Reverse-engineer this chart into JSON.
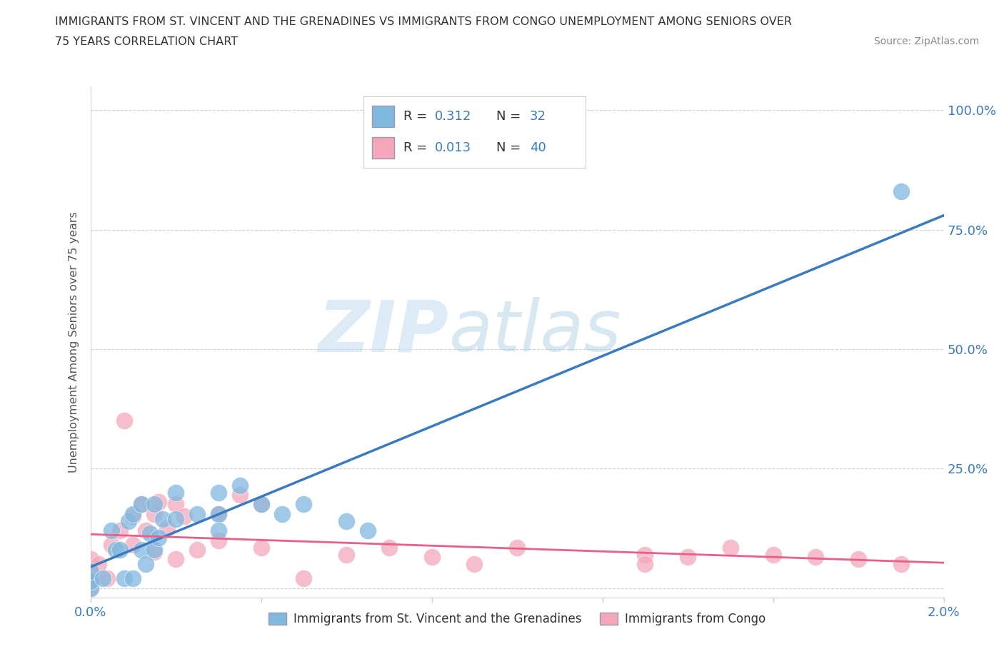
{
  "title_line1": "IMMIGRANTS FROM ST. VINCENT AND THE GRENADINES VS IMMIGRANTS FROM CONGO UNEMPLOYMENT AMONG SENIORS OVER",
  "title_line2": "75 YEARS CORRELATION CHART",
  "source": "Source: ZipAtlas.com",
  "ylabel": "Unemployment Among Seniors over 75 years",
  "xlim": [
    0.0,
    0.02
  ],
  "ylim": [
    -0.02,
    1.05
  ],
  "xticks": [
    0.0,
    0.004,
    0.008,
    0.012,
    0.016,
    0.02
  ],
  "xtick_labels": [
    "0.0%",
    "",
    "",
    "",
    "",
    "2.0%"
  ],
  "ytick_positions": [
    0.0,
    0.25,
    0.5,
    0.75,
    1.0
  ],
  "ytick_labels": [
    "",
    "25.0%",
    "50.0%",
    "75.0%",
    "100.0%"
  ],
  "blue_color": "#80b8e0",
  "pink_color": "#f4a7bb",
  "blue_line_color": "#3a7abf",
  "pink_line_color": "#e8608a",
  "R_blue": 0.312,
  "N_blue": 32,
  "R_pink": 0.013,
  "N_pink": 40,
  "watermark_zip": "ZIP",
  "watermark_atlas": "atlas",
  "blue_scatter_x": [
    0.0,
    0.0,
    0.0,
    0.0003,
    0.0005,
    0.0006,
    0.0007,
    0.0008,
    0.0009,
    0.001,
    0.001,
    0.0012,
    0.0012,
    0.0013,
    0.0014,
    0.0015,
    0.0015,
    0.0016,
    0.0017,
    0.002,
    0.002,
    0.0025,
    0.003,
    0.003,
    0.003,
    0.0035,
    0.004,
    0.0045,
    0.005,
    0.006,
    0.0065,
    0.019
  ],
  "blue_scatter_y": [
    0.0,
    0.015,
    0.035,
    0.02,
    0.12,
    0.08,
    0.08,
    0.02,
    0.14,
    0.02,
    0.155,
    0.08,
    0.175,
    0.05,
    0.115,
    0.08,
    0.175,
    0.105,
    0.145,
    0.145,
    0.2,
    0.155,
    0.155,
    0.12,
    0.2,
    0.215,
    0.175,
    0.155,
    0.175,
    0.14,
    0.12,
    0.83
  ],
  "pink_scatter_x": [
    0.0,
    0.0,
    0.0,
    0.0,
    0.0002,
    0.0004,
    0.0005,
    0.0007,
    0.0008,
    0.001,
    0.001,
    0.0012,
    0.0013,
    0.0015,
    0.0015,
    0.0016,
    0.0018,
    0.002,
    0.002,
    0.0022,
    0.0025,
    0.003,
    0.003,
    0.0035,
    0.004,
    0.004,
    0.005,
    0.006,
    0.007,
    0.008,
    0.009,
    0.01,
    0.013,
    0.013,
    0.014,
    0.015,
    0.016,
    0.017,
    0.018,
    0.019
  ],
  "pink_scatter_y": [
    0.0,
    0.015,
    0.035,
    0.06,
    0.05,
    0.02,
    0.09,
    0.12,
    0.35,
    0.09,
    0.15,
    0.175,
    0.12,
    0.155,
    0.075,
    0.18,
    0.125,
    0.175,
    0.06,
    0.15,
    0.08,
    0.155,
    0.1,
    0.195,
    0.085,
    0.175,
    0.02,
    0.07,
    0.085,
    0.065,
    0.05,
    0.085,
    0.07,
    0.05,
    0.065,
    0.085,
    0.07,
    0.065,
    0.06,
    0.05
  ],
  "background_color": "#ffffff",
  "grid_color": "#d0d0d0"
}
